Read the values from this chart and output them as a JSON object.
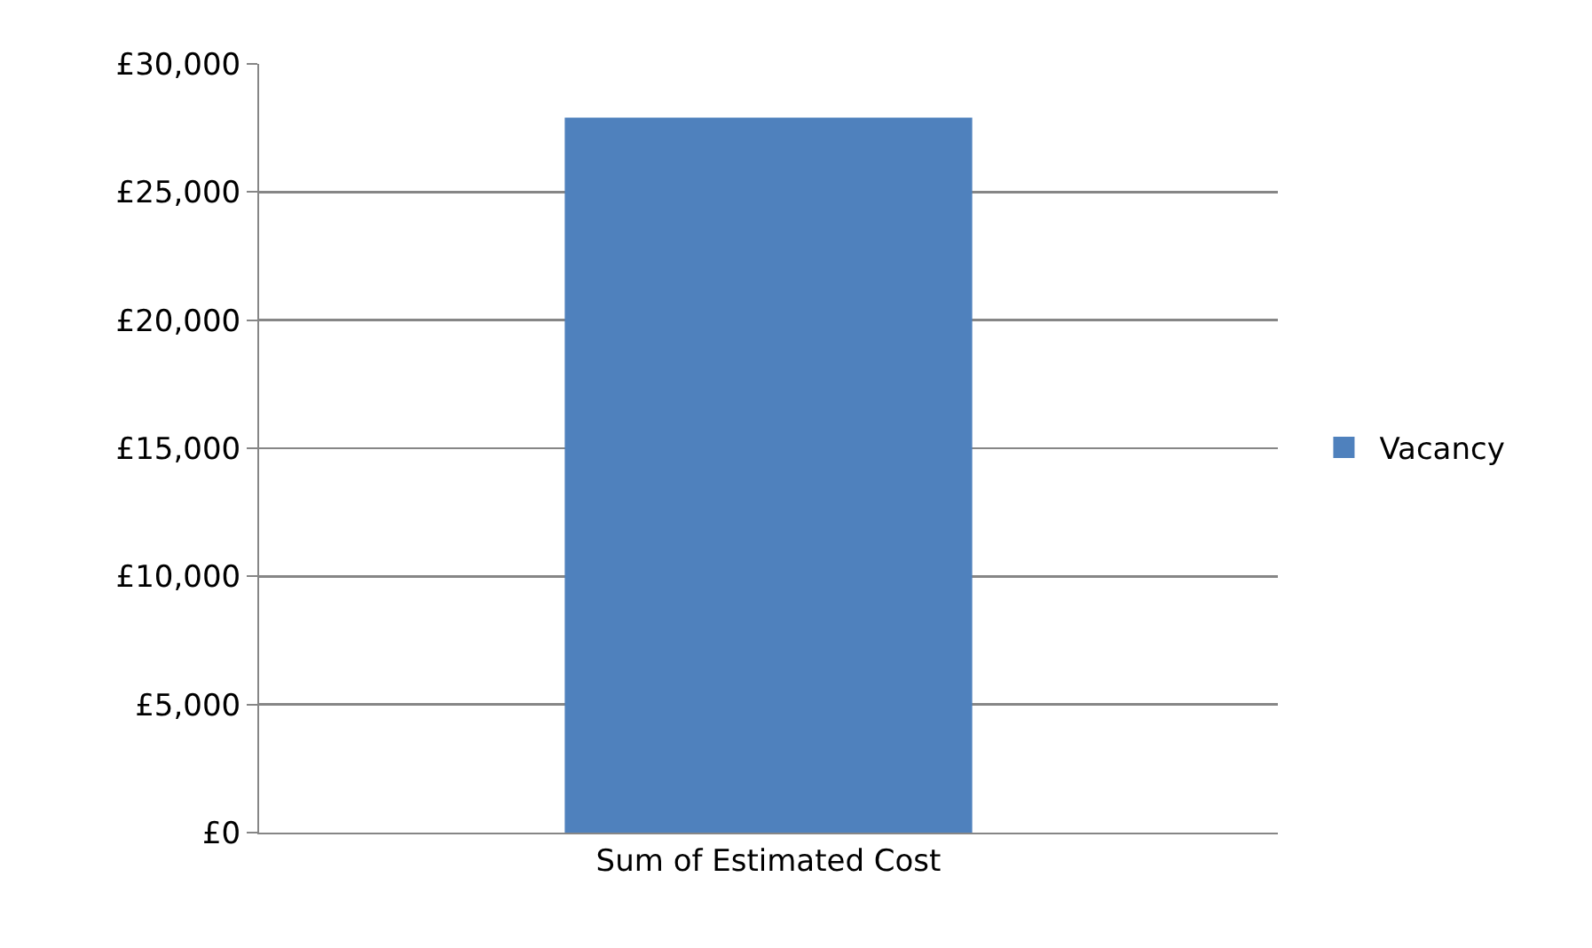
{
  "chart_data": {
    "type": "bar",
    "categories": [
      "Sum of Estimated Cost"
    ],
    "series": [
      {
        "name": "Vacancy",
        "color": "#4f81bd",
        "values": [
          27900
        ]
      }
    ],
    "ylim": [
      0,
      30000
    ],
    "yticks": [
      {
        "value": 0,
        "label": "£0"
      },
      {
        "value": 5000,
        "label": "£5,000"
      },
      {
        "value": 10000,
        "label": "£10,000"
      },
      {
        "value": 15000,
        "label": "£15,000"
      },
      {
        "value": 20000,
        "label": "£20,000"
      },
      {
        "value": 25000,
        "label": "£25,000"
      },
      {
        "value": 30000,
        "label": "£30,000"
      }
    ],
    "grid": "y",
    "legend": "right"
  }
}
